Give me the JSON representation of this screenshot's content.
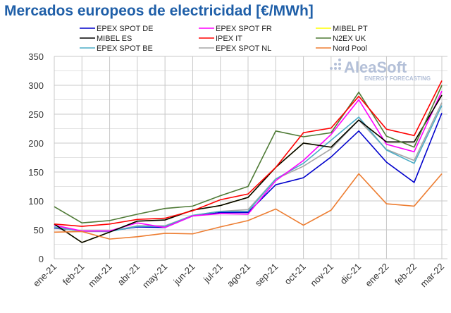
{
  "chart_data": {
    "type": "line",
    "title": "Mercados europeos de electricidad [€/MWh]",
    "watermark": "AleaSoft ENERGY FORECASTING",
    "categories": [
      "ene-21",
      "feb-21",
      "mar-21",
      "abr-21",
      "may-21",
      "jun-21",
      "jul-21",
      "ago-21",
      "sep-21",
      "oct-21",
      "nov-21",
      "dic-21",
      "ene-22",
      "feb-22",
      "mar-22"
    ],
    "ylim": [
      0,
      350
    ],
    "yticks": [
      0,
      50,
      100,
      150,
      200,
      250,
      300,
      350
    ],
    "grid": true,
    "legend_position": "top",
    "series": [
      {
        "name": "EPEX SPOT DE",
        "color": "#0000cc",
        "values": [
          53,
          48,
          48,
          55,
          54,
          74,
          80,
          80,
          128,
          140,
          176,
          221,
          167,
          132,
          252
        ]
      },
      {
        "name": "EPEX SPOT FR",
        "color": "#ff00ff",
        "values": [
          58,
          48,
          48,
          62,
          54,
          74,
          78,
          77,
          135,
          170,
          215,
          275,
          198,
          185,
          290
        ]
      },
      {
        "name": "MIBEL PT",
        "color": "#ffff00",
        "values": [
          60,
          28,
          46,
          65,
          67,
          84,
          92,
          106,
          158,
          200,
          193,
          240,
          202,
          202,
          283
        ]
      },
      {
        "name": "MIBEL ES",
        "color": "#000000",
        "values": [
          60,
          28,
          46,
          65,
          67,
          84,
          92,
          106,
          158,
          200,
          193,
          240,
          202,
          202,
          283
        ]
      },
      {
        "name": "IPEX IT",
        "color": "#ff0000",
        "values": [
          60,
          56,
          60,
          68,
          70,
          83,
          102,
          112,
          158,
          218,
          226,
          281,
          224,
          213,
          308
        ]
      },
      {
        "name": "N2EX UK",
        "color": "#4e7a35",
        "values": [
          90,
          62,
          66,
          77,
          87,
          91,
          109,
          125,
          221,
          211,
          218,
          288,
          212,
          193,
          300
        ]
      },
      {
        "name": "EPEX SPOT BE",
        "color": "#4aacc6",
        "values": [
          55,
          48,
          47,
          56,
          56,
          75,
          82,
          82,
          138,
          165,
          205,
          245,
          188,
          165,
          265
        ]
      },
      {
        "name": "EPEX SPOT NL",
        "color": "#a6a6a6",
        "values": [
          54,
          47,
          47,
          57,
          57,
          75,
          82,
          85,
          138,
          160,
          190,
          240,
          189,
          170,
          270
        ]
      },
      {
        "name": "Nord Pool",
        "color": "#ed7d31",
        "values": [
          46,
          47,
          34,
          38,
          44,
          43,
          55,
          66,
          86,
          58,
          84,
          147,
          95,
          91,
          147
        ]
      }
    ]
  }
}
